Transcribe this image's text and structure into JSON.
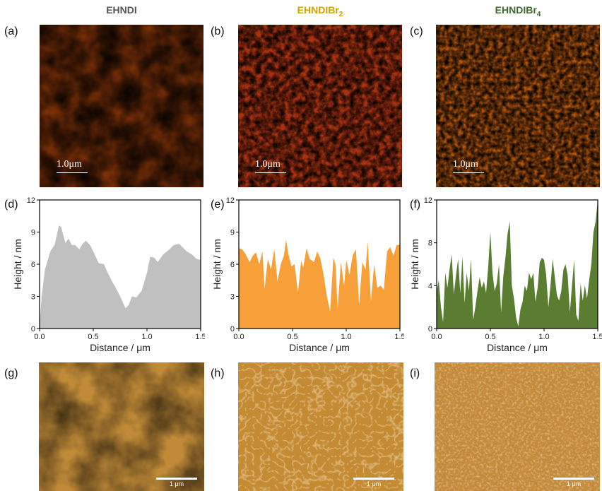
{
  "columns": [
    {
      "title": "EHNDI",
      "sub": "",
      "color": "#444444"
    },
    {
      "title": "EHNDIBr",
      "sub": "2",
      "color": "#d4a000"
    },
    {
      "title": "EHNDIBr",
      "sub": "4",
      "color": "#3c6a2a"
    }
  ],
  "panel_labels": {
    "a": "(a)",
    "b": "(b)",
    "c": "(c)",
    "d": "(d)",
    "e": "(e)",
    "f": "(f)",
    "g": "(g)",
    "h": "(h)",
    "i": "(i)"
  },
  "afm_scale_label": "1.0μm",
  "sem_scale_label": "1 μm",
  "chart_data": [
    {
      "type": "area",
      "xlabel": "Distance / μm",
      "ylabel": "Height / nm",
      "xlim": [
        0,
        1.5
      ],
      "ylim": [
        0,
        12
      ],
      "xticks": [
        "0.0",
        "0.5",
        "1.0",
        "1.5"
      ],
      "yticks": [
        "0",
        "3",
        "6",
        "9",
        "12"
      ],
      "color": "#c0c0c0",
      "x": [
        0.0,
        0.02,
        0.05,
        0.1,
        0.14,
        0.18,
        0.2,
        0.24,
        0.27,
        0.3,
        0.33,
        0.37,
        0.4,
        0.43,
        0.47,
        0.5,
        0.55,
        0.6,
        0.63,
        0.67,
        0.72,
        0.76,
        0.8,
        0.83,
        0.86,
        0.9,
        0.95,
        1.0,
        1.03,
        1.07,
        1.1,
        1.15,
        1.2,
        1.25,
        1.3,
        1.33,
        1.37,
        1.42,
        1.46,
        1.5
      ],
      "y": [
        0.4,
        3.0,
        5.5,
        7.2,
        7.8,
        9.6,
        9.5,
        8.0,
        8.4,
        7.8,
        7.8,
        7.4,
        7.9,
        8.2,
        7.8,
        7.2,
        6.1,
        6.0,
        5.3,
        4.5,
        3.6,
        2.8,
        1.9,
        2.2,
        3.0,
        2.9,
        3.5,
        5.2,
        6.7,
        6.6,
        6.2,
        6.9,
        7.3,
        7.8,
        7.9,
        7.6,
        7.2,
        6.9,
        6.5,
        6.4
      ]
    },
    {
      "type": "area",
      "xlabel": "Distance / μm",
      "ylabel": "Height / nm",
      "xlim": [
        0,
        1.5
      ],
      "ylim": [
        0,
        12
      ],
      "xticks": [
        "0.0",
        "0.5",
        "1.0",
        "1.5"
      ],
      "yticks": [
        "0",
        "3",
        "6",
        "9",
        "12"
      ],
      "color": "#f7a03a",
      "x": [
        0.0,
        0.03,
        0.06,
        0.1,
        0.13,
        0.16,
        0.19,
        0.22,
        0.24,
        0.27,
        0.3,
        0.33,
        0.36,
        0.39,
        0.42,
        0.44,
        0.46,
        0.49,
        0.52,
        0.55,
        0.58,
        0.6,
        0.63,
        0.66,
        0.7,
        0.73,
        0.76,
        0.79,
        0.82,
        0.85,
        0.88,
        0.9,
        0.92,
        0.95,
        0.98,
        1.0,
        1.03,
        1.06,
        1.09,
        1.12,
        1.15,
        1.18,
        1.2,
        1.23,
        1.26,
        1.29,
        1.32,
        1.35,
        1.38,
        1.41,
        1.44,
        1.47,
        1.5
      ],
      "y": [
        7.5,
        7.4,
        7.0,
        6.2,
        6.8,
        7.1,
        6.0,
        7.2,
        3.7,
        6.5,
        5.5,
        7.4,
        4.4,
        6.0,
        6.8,
        8.3,
        7.0,
        5.8,
        6.0,
        3.3,
        6.3,
        5.7,
        7.5,
        6.5,
        6.2,
        7.2,
        6.5,
        5.0,
        3.0,
        1.6,
        6.6,
        6.0,
        1.8,
        6.2,
        4.0,
        6.4,
        5.0,
        6.8,
        7.4,
        2.2,
        6.2,
        5.5,
        8.1,
        2.5,
        6.0,
        3.8,
        4.0,
        3.6,
        7.2,
        7.6,
        6.8,
        7.8,
        7.8
      ]
    },
    {
      "type": "area",
      "xlabel": "Distance / μm",
      "ylabel": "Height / nm",
      "xlim": [
        0,
        1.5
      ],
      "ylim": [
        0,
        12
      ],
      "xticks": [
        "0.0",
        "0.5",
        "1.0",
        "1.5"
      ],
      "yticks": [
        "0",
        "4",
        "8",
        "12"
      ],
      "color": "#5a7d32",
      "x": [
        0.0,
        0.02,
        0.04,
        0.06,
        0.08,
        0.1,
        0.12,
        0.14,
        0.16,
        0.18,
        0.2,
        0.22,
        0.24,
        0.26,
        0.28,
        0.3,
        0.32,
        0.34,
        0.36,
        0.38,
        0.4,
        0.42,
        0.44,
        0.46,
        0.48,
        0.5,
        0.52,
        0.54,
        0.56,
        0.58,
        0.6,
        0.62,
        0.64,
        0.66,
        0.68,
        0.7,
        0.72,
        0.74,
        0.76,
        0.78,
        0.8,
        0.82,
        0.84,
        0.86,
        0.88,
        0.9,
        0.92,
        0.94,
        0.96,
        0.98,
        1.0,
        1.02,
        1.04,
        1.06,
        1.08,
        1.1,
        1.12,
        1.14,
        1.16,
        1.18,
        1.2,
        1.22,
        1.24,
        1.26,
        1.28,
        1.3,
        1.32,
        1.34,
        1.36,
        1.38,
        1.4,
        1.42,
        1.44,
        1.46,
        1.48,
        1.5
      ],
      "y": [
        3.5,
        4.5,
        2.0,
        0.6,
        5.2,
        3.8,
        5.5,
        6.9,
        3.2,
        5.0,
        6.5,
        3.3,
        6.7,
        2.4,
        5.2,
        3.5,
        6.5,
        0.8,
        2.0,
        3.5,
        4.8,
        3.8,
        4.4,
        3.3,
        5.8,
        9.0,
        5.2,
        3.5,
        4.2,
        6.0,
        1.5,
        4.8,
        6.6,
        8.8,
        10.0,
        4.0,
        2.8,
        1.0,
        0.2,
        1.8,
        2.5,
        4.0,
        3.5,
        5.2,
        4.6,
        5.2,
        2.5,
        3.8,
        6.2,
        6.6,
        6.4,
        5.0,
        2.0,
        4.0,
        6.5,
        4.8,
        3.1,
        2.6,
        3.5,
        5.5,
        6.0,
        5.0,
        1.5,
        4.0,
        6.4,
        1.3,
        0.7,
        4.2,
        2.6,
        4.0,
        2.8,
        4.5,
        6.0,
        9.0,
        10.0,
        12.0
      ]
    }
  ]
}
